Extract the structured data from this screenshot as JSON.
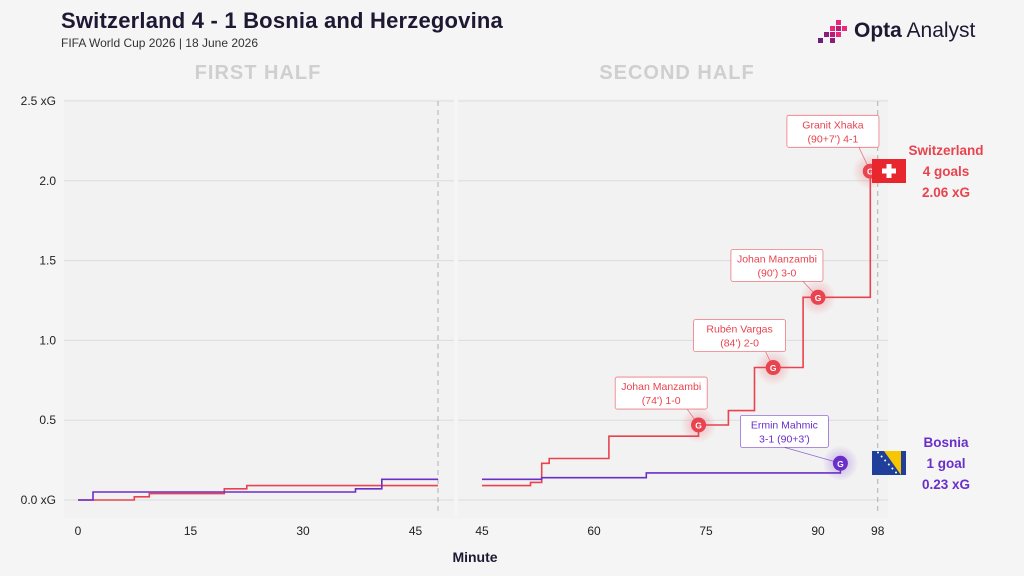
{
  "header": {
    "title": "Switzerland 4 - 1 Bosnia and Herzegovina",
    "subtitle": "FIFA World Cup 2026 | 18 June 2026",
    "brand_bold": "Opta",
    "brand_rest": " Analyst"
  },
  "colors": {
    "switzerland": "#e8434e",
    "bosnia": "#6a2fc9",
    "background": "#f5f5f5",
    "panel": "#f2f2f2"
  },
  "chart_data": {
    "type": "line",
    "step": true,
    "xlabel": "Minute",
    "ylabel": "",
    "ylim": [
      0,
      2.5
    ],
    "ytick_labels": [
      "0.0 xG",
      "0.5",
      "1.0",
      "1.5",
      "2.0",
      "2.5 xG"
    ],
    "yticks": [
      0,
      0.5,
      1.0,
      1.5,
      2.0,
      2.5
    ],
    "grid": true,
    "panels": [
      {
        "label": "FIRST HALF",
        "xlim": [
          0,
          48
        ],
        "xticks": [
          0,
          15,
          30,
          45
        ],
        "end_marker": 48
      },
      {
        "label": "SECOND HALF",
        "xlim": [
          45,
          98
        ],
        "xticks": [
          45,
          60,
          75,
          90,
          98
        ],
        "end_marker": 98
      }
    ],
    "series": [
      {
        "name": "Switzerland",
        "color": "#e8434e",
        "first_half": [
          [
            0,
            0
          ],
          [
            7.5,
            0
          ],
          [
            7.5,
            0.02
          ],
          [
            9.5,
            0.02
          ],
          [
            9.5,
            0.04
          ],
          [
            19.5,
            0.04
          ],
          [
            19.5,
            0.07
          ],
          [
            22.5,
            0.07
          ],
          [
            22.5,
            0.09
          ],
          [
            40.5,
            0.09
          ],
          [
            40.5,
            0.09
          ],
          [
            48,
            0.09
          ]
        ],
        "second_half": [
          [
            45,
            0.09
          ],
          [
            51.5,
            0.09
          ],
          [
            51.5,
            0.11
          ],
          [
            53,
            0.11
          ],
          [
            53,
            0.23
          ],
          [
            54,
            0.23
          ],
          [
            54,
            0.26
          ],
          [
            62,
            0.26
          ],
          [
            62,
            0.4
          ],
          [
            74,
            0.4
          ],
          [
            74,
            0.47
          ],
          [
            78,
            0.47
          ],
          [
            78,
            0.56
          ],
          [
            81.5,
            0.56
          ],
          [
            81.5,
            0.83
          ],
          [
            84,
            0.83
          ],
          [
            84,
            0.83
          ],
          [
            88,
            0.83
          ],
          [
            88,
            1.27
          ],
          [
            90,
            1.27
          ],
          [
            90,
            1.27
          ],
          [
            97,
            1.27
          ],
          [
            97,
            2.06
          ],
          [
            98,
            2.06
          ]
        ]
      },
      {
        "name": "Bosnia",
        "color": "#6a2fc9",
        "first_half": [
          [
            0,
            0
          ],
          [
            2,
            0
          ],
          [
            2,
            0.05
          ],
          [
            37,
            0.05
          ],
          [
            37,
            0.07
          ],
          [
            40.5,
            0.07
          ],
          [
            40.5,
            0.13
          ],
          [
            48,
            0.13
          ]
        ],
        "second_half": [
          [
            45,
            0.13
          ],
          [
            53,
            0.13
          ],
          [
            53,
            0.14
          ],
          [
            67,
            0.14
          ],
          [
            67,
            0.17
          ],
          [
            93,
            0.17
          ],
          [
            93,
            0.23
          ]
        ]
      }
    ],
    "goals": [
      {
        "team": "switzerland",
        "minute": 74,
        "xg": 0.47,
        "label1": "Johan Manzambi",
        "label2": "(74') 1-0",
        "box_minute": 69,
        "box_xg": 0.67
      },
      {
        "team": "switzerland",
        "minute": 84,
        "xg": 0.83,
        "label1": "Rubén Vargas",
        "label2": "(84') 2-0",
        "box_minute": 79.5,
        "box_xg": 1.03
      },
      {
        "team": "switzerland",
        "minute": 90,
        "xg": 1.27,
        "label1": "Johan Manzambi",
        "label2": "(90') 3-0",
        "box_minute": 84.5,
        "box_xg": 1.47
      },
      {
        "team": "switzerland",
        "minute": 97,
        "xg": 2.06,
        "label1": "Granit Xhaka",
        "label2": "(90+7') 4-1",
        "box_minute": 92,
        "box_xg": 2.31
      },
      {
        "team": "bosnia",
        "minute": 93,
        "xg": 0.23,
        "label1": "Ermin Mahmic",
        "label2": "3-1 (90+3')",
        "box_minute": 85.5,
        "box_xg": 0.43
      }
    ],
    "goal_marker": "G",
    "team_labels": [
      {
        "team": "switzerland",
        "lines": [
          "Switzerland",
          "4 goals",
          "2.06 xG"
        ]
      },
      {
        "team": "bosnia",
        "lines": [
          "Bosnia",
          "1 goal",
          "0.23 xG"
        ]
      }
    ]
  }
}
